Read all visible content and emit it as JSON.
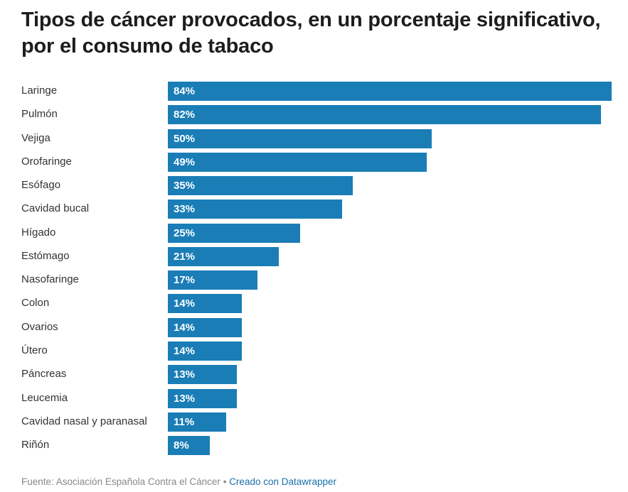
{
  "chart_data": {
    "type": "bar",
    "orientation": "horizontal",
    "title": "Tipos de cáncer provocados, en un porcentaje significativo, por el consumo de tabaco",
    "categories": [
      "Laringe",
      "Pulmón",
      "Vejiga",
      "Orofaringe",
      "Esófago",
      "Cavidad bucal",
      "Hígado",
      "Estómago",
      "Nasofaringe",
      "Colon",
      "Ovarios",
      "Útero",
      "Páncreas",
      "Leucemia",
      "Cavidad nasal y paranasal",
      "Riñón"
    ],
    "values": [
      84,
      82,
      50,
      49,
      35,
      33,
      25,
      21,
      17,
      14,
      14,
      14,
      13,
      13,
      11,
      8
    ],
    "value_labels": [
      "84%",
      "82%",
      "50%",
      "49%",
      "35%",
      "33%",
      "25%",
      "21%",
      "17%",
      "14%",
      "14%",
      "14%",
      "13%",
      "13%",
      "11%",
      "8%"
    ],
    "xlabel": "",
    "ylabel": "",
    "xlim": [
      0,
      84
    ],
    "grid": false,
    "bar_color": "#1a7db6",
    "value_label_color": "#ffffff"
  },
  "footer": {
    "source": "Fuente: Asociación Española Contra el Cáncer",
    "separator": "•",
    "credit": "Creado con Datawrapper",
    "credit_color": "#1a6fa8"
  }
}
